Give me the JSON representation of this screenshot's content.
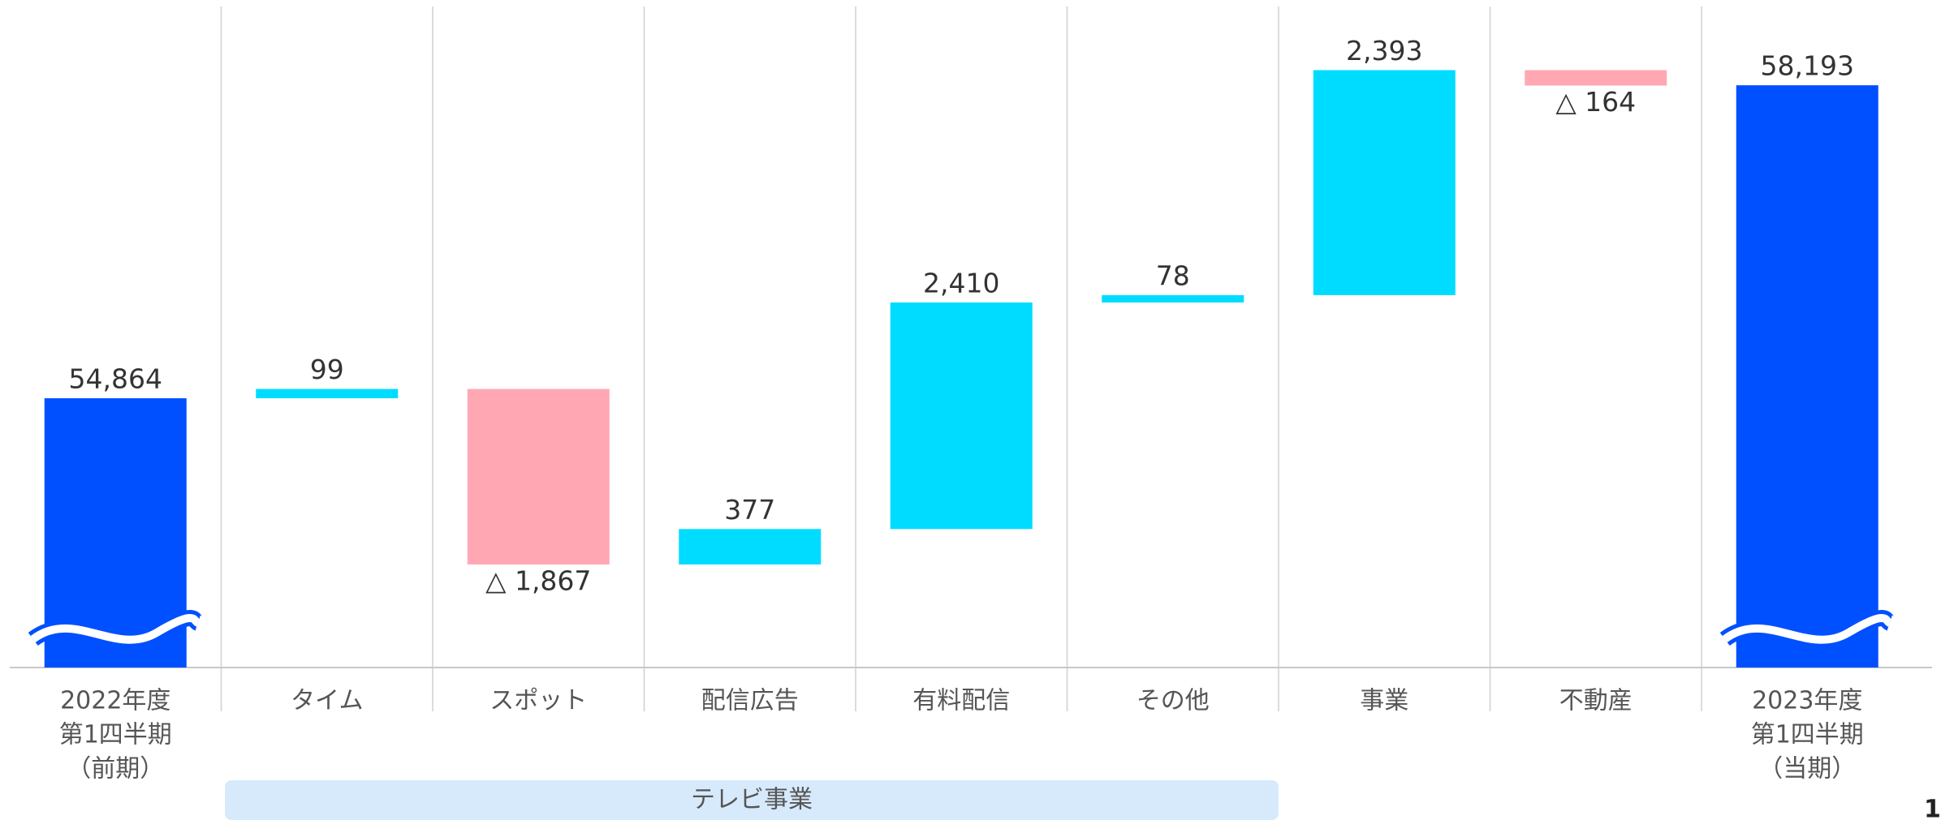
{
  "chart_data": {
    "type": "waterfall",
    "categories": [
      [
        "2022年度",
        "第1四半期",
        "（前期）"
      ],
      [
        "タイム"
      ],
      [
        "スポット"
      ],
      [
        "配信広告"
      ],
      [
        "有料配信"
      ],
      [
        "その他"
      ],
      [
        "事業"
      ],
      [
        "不動産"
      ],
      [
        "2023年度",
        "第1四半期",
        "（当期）"
      ]
    ],
    "measures": [
      "total",
      "relative",
      "relative",
      "relative",
      "relative",
      "relative",
      "relative",
      "relative",
      "total"
    ],
    "values": [
      54864,
      99,
      -1867,
      377,
      2410,
      78,
      2393,
      -164,
      58193
    ],
    "value_labels": [
      "54,864",
      "99",
      "△ 1,867",
      "377",
      "2,410",
      "78",
      "2,393",
      "△ 164",
      "58,193"
    ],
    "colors": {
      "total": "#0050ff",
      "increase": "#00dcff",
      "decrease": "#ffa8b4"
    },
    "ylim": [
      52000,
      59100
    ],
    "group": {
      "label": "テレビ事業",
      "from": 1,
      "to": 5
    },
    "page_number": "1"
  }
}
